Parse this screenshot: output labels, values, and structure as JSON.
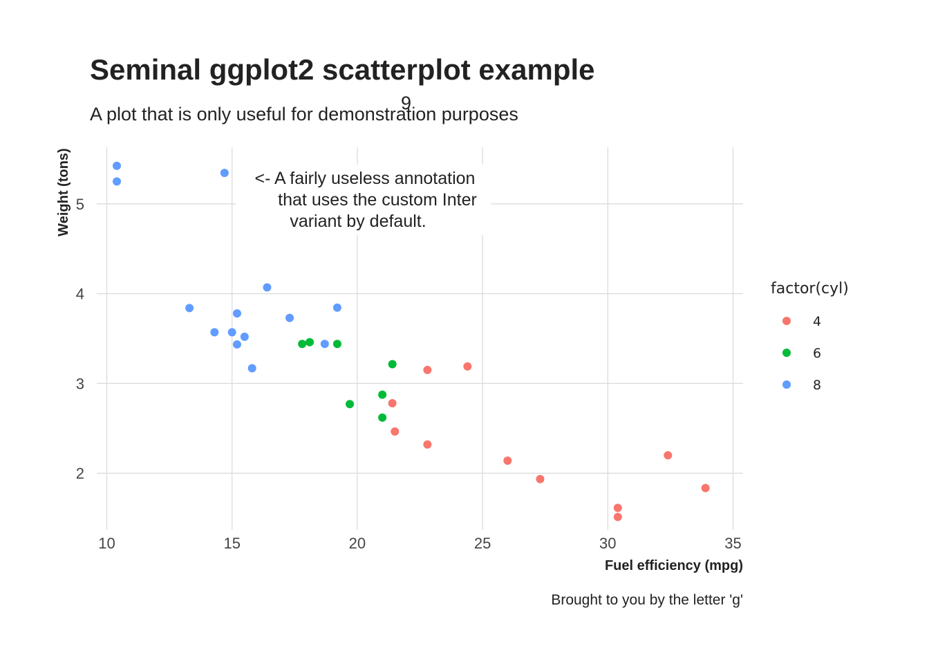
{
  "chart_data": {
    "type": "scatter",
    "title": "Seminal ggplot2 scatterplot example",
    "subtitle": "A plot that is only useful for demonstration purposes",
    "stray_glyph": "9",
    "xlabel": "Fuel efficiency (mpg)",
    "ylabel": "Weight (tons)",
    "caption": "Brought to you by the letter 'g'",
    "xlim": [
      9.6,
      35.4
    ],
    "ylim": [
      1.37,
      5.63
    ],
    "x_ticks": [
      10,
      15,
      20,
      25,
      30,
      35
    ],
    "y_ticks": [
      2,
      3,
      4,
      5
    ],
    "x_tick_labels": [
      "10",
      "15",
      "20",
      "25",
      "30",
      "35"
    ],
    "y_tick_labels": [
      "2",
      "3",
      "4",
      "5"
    ],
    "grid": true,
    "annotation": {
      "lines": [
        "<- A fairly useless annotation",
        "that uses the custom Inter",
        "variant by default."
      ],
      "anchor_x": 15.0,
      "anchor_y": 5.25
    },
    "legend": {
      "title": "factor(cyl)",
      "position": "right",
      "entries": [
        "4",
        "6",
        "8"
      ]
    },
    "series": [
      {
        "name": "4",
        "color": "#F8766D",
        "x": [
          22.8,
          24.4,
          22.8,
          32.4,
          30.4,
          33.9,
          21.5,
          27.3,
          26.0,
          30.4,
          21.4
        ],
        "y": [
          2.32,
          3.19,
          3.15,
          2.2,
          1.615,
          1.835,
          2.465,
          1.935,
          2.14,
          1.513,
          2.78
        ]
      },
      {
        "name": "6",
        "color": "#00BA38",
        "x": [
          21.0,
          21.0,
          21.4,
          18.1,
          19.2,
          17.8,
          19.7
        ],
        "y": [
          2.62,
          2.875,
          3.215,
          3.46,
          3.44,
          3.44,
          2.77
        ]
      },
      {
        "name": "8",
        "color": "#619CFF",
        "x": [
          18.7,
          14.3,
          16.4,
          17.3,
          15.2,
          10.4,
          10.4,
          14.7,
          15.5,
          15.2,
          13.3,
          19.2,
          15.8,
          15.0
        ],
        "y": [
          3.44,
          3.57,
          4.07,
          3.73,
          3.78,
          5.25,
          5.424,
          5.345,
          3.52,
          3.435,
          3.84,
          3.845,
          3.17,
          3.57
        ]
      }
    ]
  }
}
